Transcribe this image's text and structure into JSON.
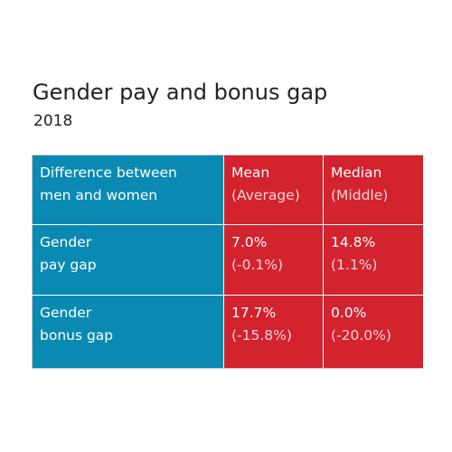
{
  "header": {
    "title": "Gender pay and bonus gap",
    "subtitle": "2018"
  },
  "table": {
    "rows": [
      [
        [
          "Difference between",
          "men and women"
        ],
        [
          "Mean",
          "(Average)"
        ],
        [
          "Median",
          "(Middle)"
        ]
      ],
      [
        [
          "Gender",
          "pay gap"
        ],
        [
          "7.0%",
          "(-0.1%)"
        ],
        [
          "14.8%",
          "(1.1%)"
        ]
      ],
      [
        [
          "Gender",
          "bonus gap"
        ],
        [
          "17.7%",
          "(-15.8%)"
        ],
        [
          "0.0%",
          "(-20.0%)"
        ]
      ]
    ]
  }
}
